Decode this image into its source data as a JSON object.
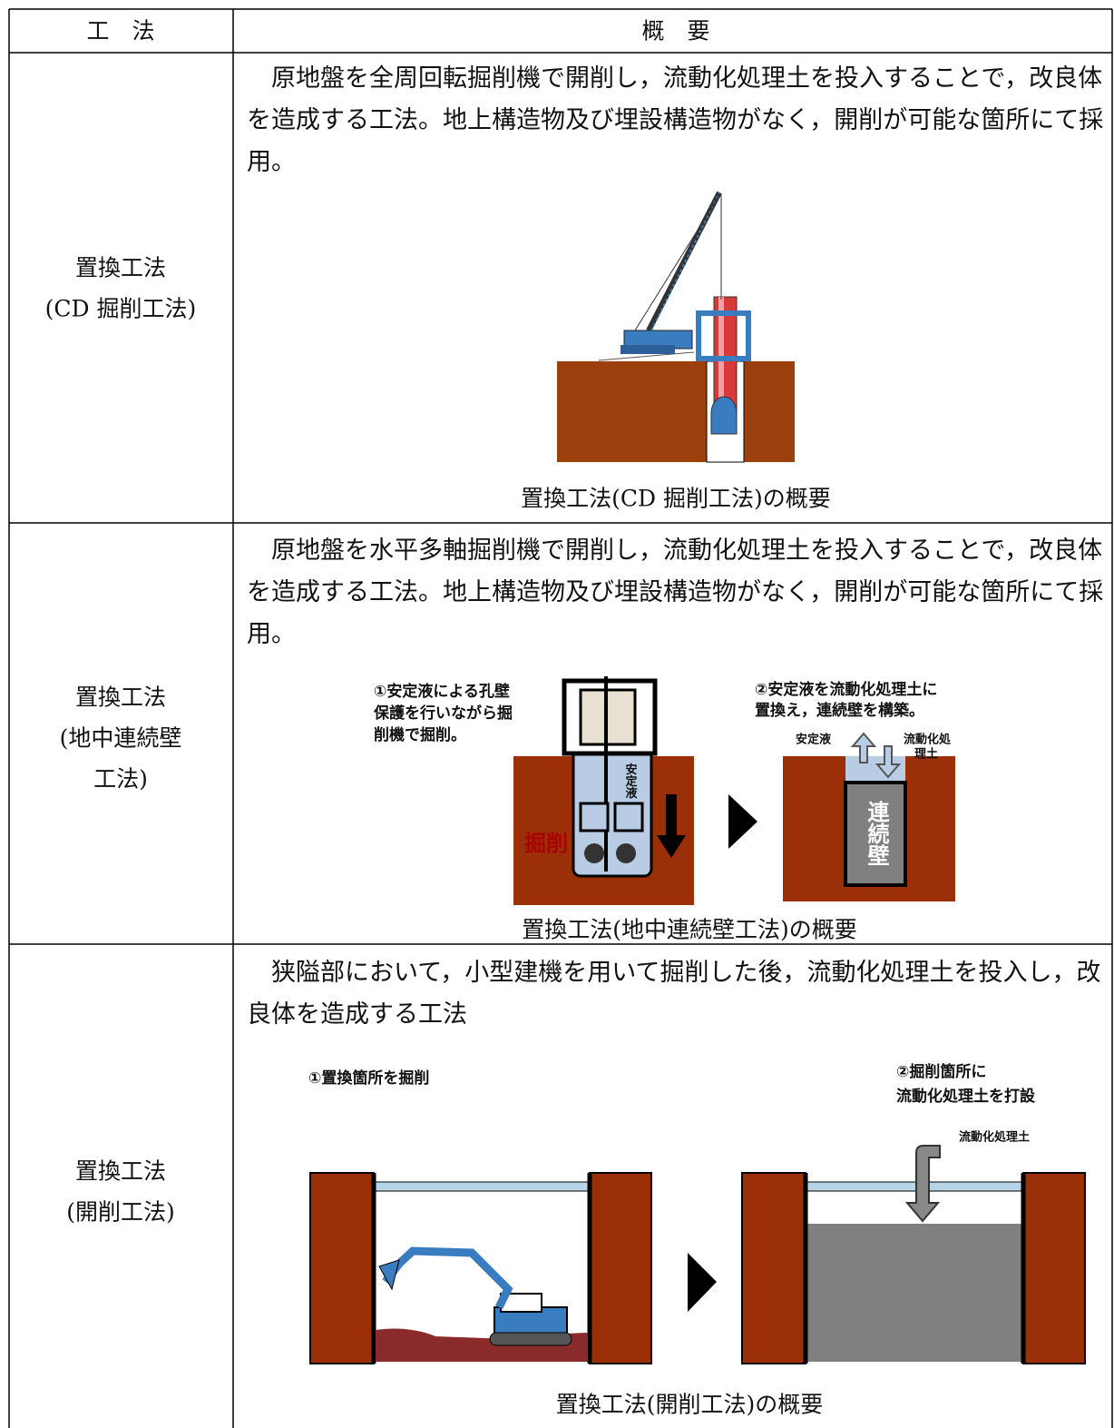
{
  "table": {
    "header": [
      "工　法",
      "概　要"
    ],
    "rows": [
      {
        "method": [
          "置換工法",
          "(CD 掘削工法)"
        ],
        "description": "原地盤を全周回転掘削機で開削し，流動化処理土を投入することで，改良体を造成する工法。地上構造物及び埋設構造物がなく，開削が可能な箇所にて採用。",
        "caption": "置換工法(CD 掘削工法)の概要"
      },
      {
        "method": [
          "置換工法",
          "(地中連続壁",
          "工法)"
        ],
        "description": "原地盤を水平多軸掘削機で開削し，流動化処理土を投入することで，改良体を造成する工法。地上構造物及び埋設構造物がなく，開削が可能な箇所にて採用。",
        "figure": {
          "step1": [
            "①安定液による孔壁",
            "保護を行いながら掘",
            "削機で掘削。"
          ],
          "step2": [
            "②安定液を流動化処理土に",
            "置換え，連続壁を構築。"
          ],
          "machine_label": "安定液",
          "excavation_label": "掘削",
          "out_label": "安定液",
          "in_label": [
            "流動化処",
            "理土"
          ],
          "wall_label": "連続壁"
        },
        "caption": "置換工法(地中連続壁工法)の概要"
      },
      {
        "method": [
          "置換工法",
          "(開削工法)"
        ],
        "description": "狭隘部において，小型建機を用いて掘削した後，流動化処理土を投入し，改良体を造成する工法",
        "figure": {
          "step1": "①置換箇所を掘削",
          "step2": [
            "②掘削箇所に",
            "流動化処理土を打設"
          ],
          "in_label": "流動化処理土"
        },
        "caption": "置換工法(開削工法)の概要"
      }
    ]
  }
}
